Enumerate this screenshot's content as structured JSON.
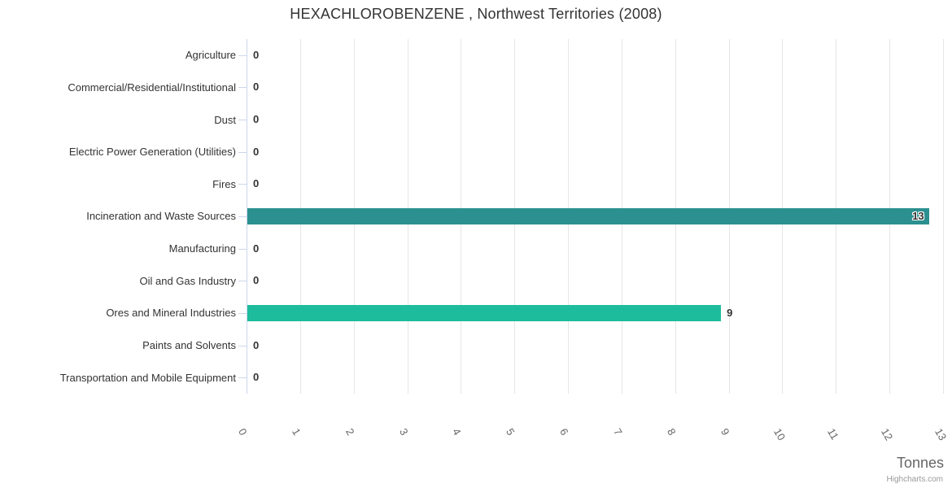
{
  "chart": {
    "title": "HEXACHLOROBENZENE , Northwest Territories (2008)",
    "x_axis_title": "Tonnes",
    "credits": "Highcharts.com"
  },
  "chart_data": {
    "type": "bar",
    "orientation": "horizontal",
    "title": "HEXACHLOROBENZENE , Northwest Territories (2008)",
    "xlabel": "Tonnes",
    "ylabel": "",
    "xlim": [
      0,
      13
    ],
    "x_ticks": [
      "0",
      "1",
      "2",
      "3",
      "4",
      "5",
      "6",
      "7",
      "8",
      "9",
      "10",
      "11",
      "12",
      "13"
    ],
    "grid": true,
    "legend": false,
    "categories": [
      "Agriculture",
      "Commercial/Residential/Institutional",
      "Dust",
      "Electric Power Generation (Utilities)",
      "Fires",
      "Incineration and Waste Sources",
      "Manufacturing",
      "Oil and Gas Industry",
      "Ores and Mineral Industries",
      "Paints and Solvents",
      "Transportation and Mobile Equipment"
    ],
    "values": [
      0,
      0,
      0,
      0,
      0,
      13,
      0,
      0,
      9,
      0,
      0
    ],
    "values_plot": [
      0,
      0,
      0,
      0,
      0,
      12.72,
      0,
      0,
      8.84,
      0,
      0
    ],
    "labels": [
      "0",
      "0",
      "0",
      "0",
      "0",
      "13",
      "0",
      "0",
      "9",
      "0",
      "0"
    ],
    "point_colors": [
      "#2b908f",
      "#2b908f",
      "#2b908f",
      "#2b908f",
      "#2b908f",
      "#2b908f",
      "#2b908f",
      "#2b908f",
      "#1dbc9c",
      "#2b908f",
      "#2b908f"
    ]
  },
  "colors": {
    "bar_teal_dark": "#2b908f",
    "bar_green": "#1dbc9c",
    "grid_line": "#e6e6e6",
    "axis_line": "#ccd6eb",
    "title_text": "#333333",
    "label_text": "#333333",
    "tick_text": "#666666",
    "credits_text": "#999999"
  }
}
